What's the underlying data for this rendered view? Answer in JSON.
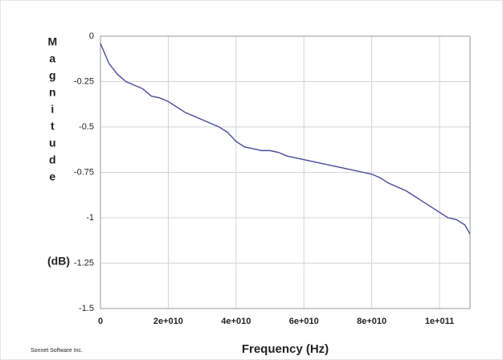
{
  "chart_data": {
    "type": "line",
    "xlabel": "Frequency (Hz)",
    "ylabel": "Magnitude",
    "yunit": "(dB)",
    "credit": "Sonnet Software Inc.",
    "x": [
      0,
      2500000000.0,
      5000000000.0,
      7500000000.0,
      10000000000.0,
      12500000000.0,
      15000000000.0,
      17500000000.0,
      20000000000.0,
      22500000000.0,
      25000000000.0,
      27500000000.0,
      30000000000.0,
      32500000000.0,
      35000000000.0,
      37500000000.0,
      40000000000.0,
      42500000000.0,
      45000000000.0,
      47500000000.0,
      50000000000.0,
      52500000000.0,
      55000000000.0,
      57500000000.0,
      60000000000.0,
      62500000000.0,
      65000000000.0,
      67500000000.0,
      70000000000.0,
      72500000000.0,
      75000000000.0,
      77500000000.0,
      80000000000.0,
      82500000000.0,
      85000000000.0,
      87500000000.0,
      90000000000.0,
      92500000000.0,
      95000000000.0,
      97500000000.0,
      100000000000.0,
      102500000000.0,
      105000000000.0,
      107500000000.0,
      109000000000.0
    ],
    "series": [
      {
        "color": "#4a4a9c",
        "values": [
          -0.04,
          -0.15,
          -0.21,
          -0.25,
          -0.27,
          -0.29,
          -0.33,
          -0.34,
          -0.36,
          -0.39,
          -0.42,
          -0.44,
          -0.46,
          -0.48,
          -0.5,
          -0.53,
          -0.58,
          -0.61,
          -0.62,
          -0.63,
          -0.63,
          -0.64,
          -0.66,
          -0.67,
          -0.68,
          -0.69,
          -0.7,
          -0.71,
          -0.72,
          -0.73,
          -0.74,
          -0.75,
          -0.76,
          -0.78,
          -0.81,
          -0.83,
          -0.85,
          -0.88,
          -0.91,
          -0.94,
          -0.97,
          -1.0,
          -1.01,
          -1.04,
          -1.09
        ]
      }
    ],
    "xlim": [
      0,
      109000000000.0
    ],
    "xticks": [
      0,
      {
        "value": 20000000000.0,
        "label": "2e+010"
      },
      {
        "value": 40000000000.0,
        "label": "4e+010"
      },
      {
        "value": 60000000000.0,
        "label": "6e+010"
      },
      {
        "value": 80000000000.0,
        "label": "8e+010"
      },
      {
        "value": 100000000000.0,
        "label": "1e+011"
      }
    ],
    "ylim": [
      -1.5,
      0
    ],
    "yticks": [
      0,
      -0.25,
      -0.5,
      -0.75,
      -1,
      -1.25,
      -1.5
    ],
    "grid": true
  }
}
